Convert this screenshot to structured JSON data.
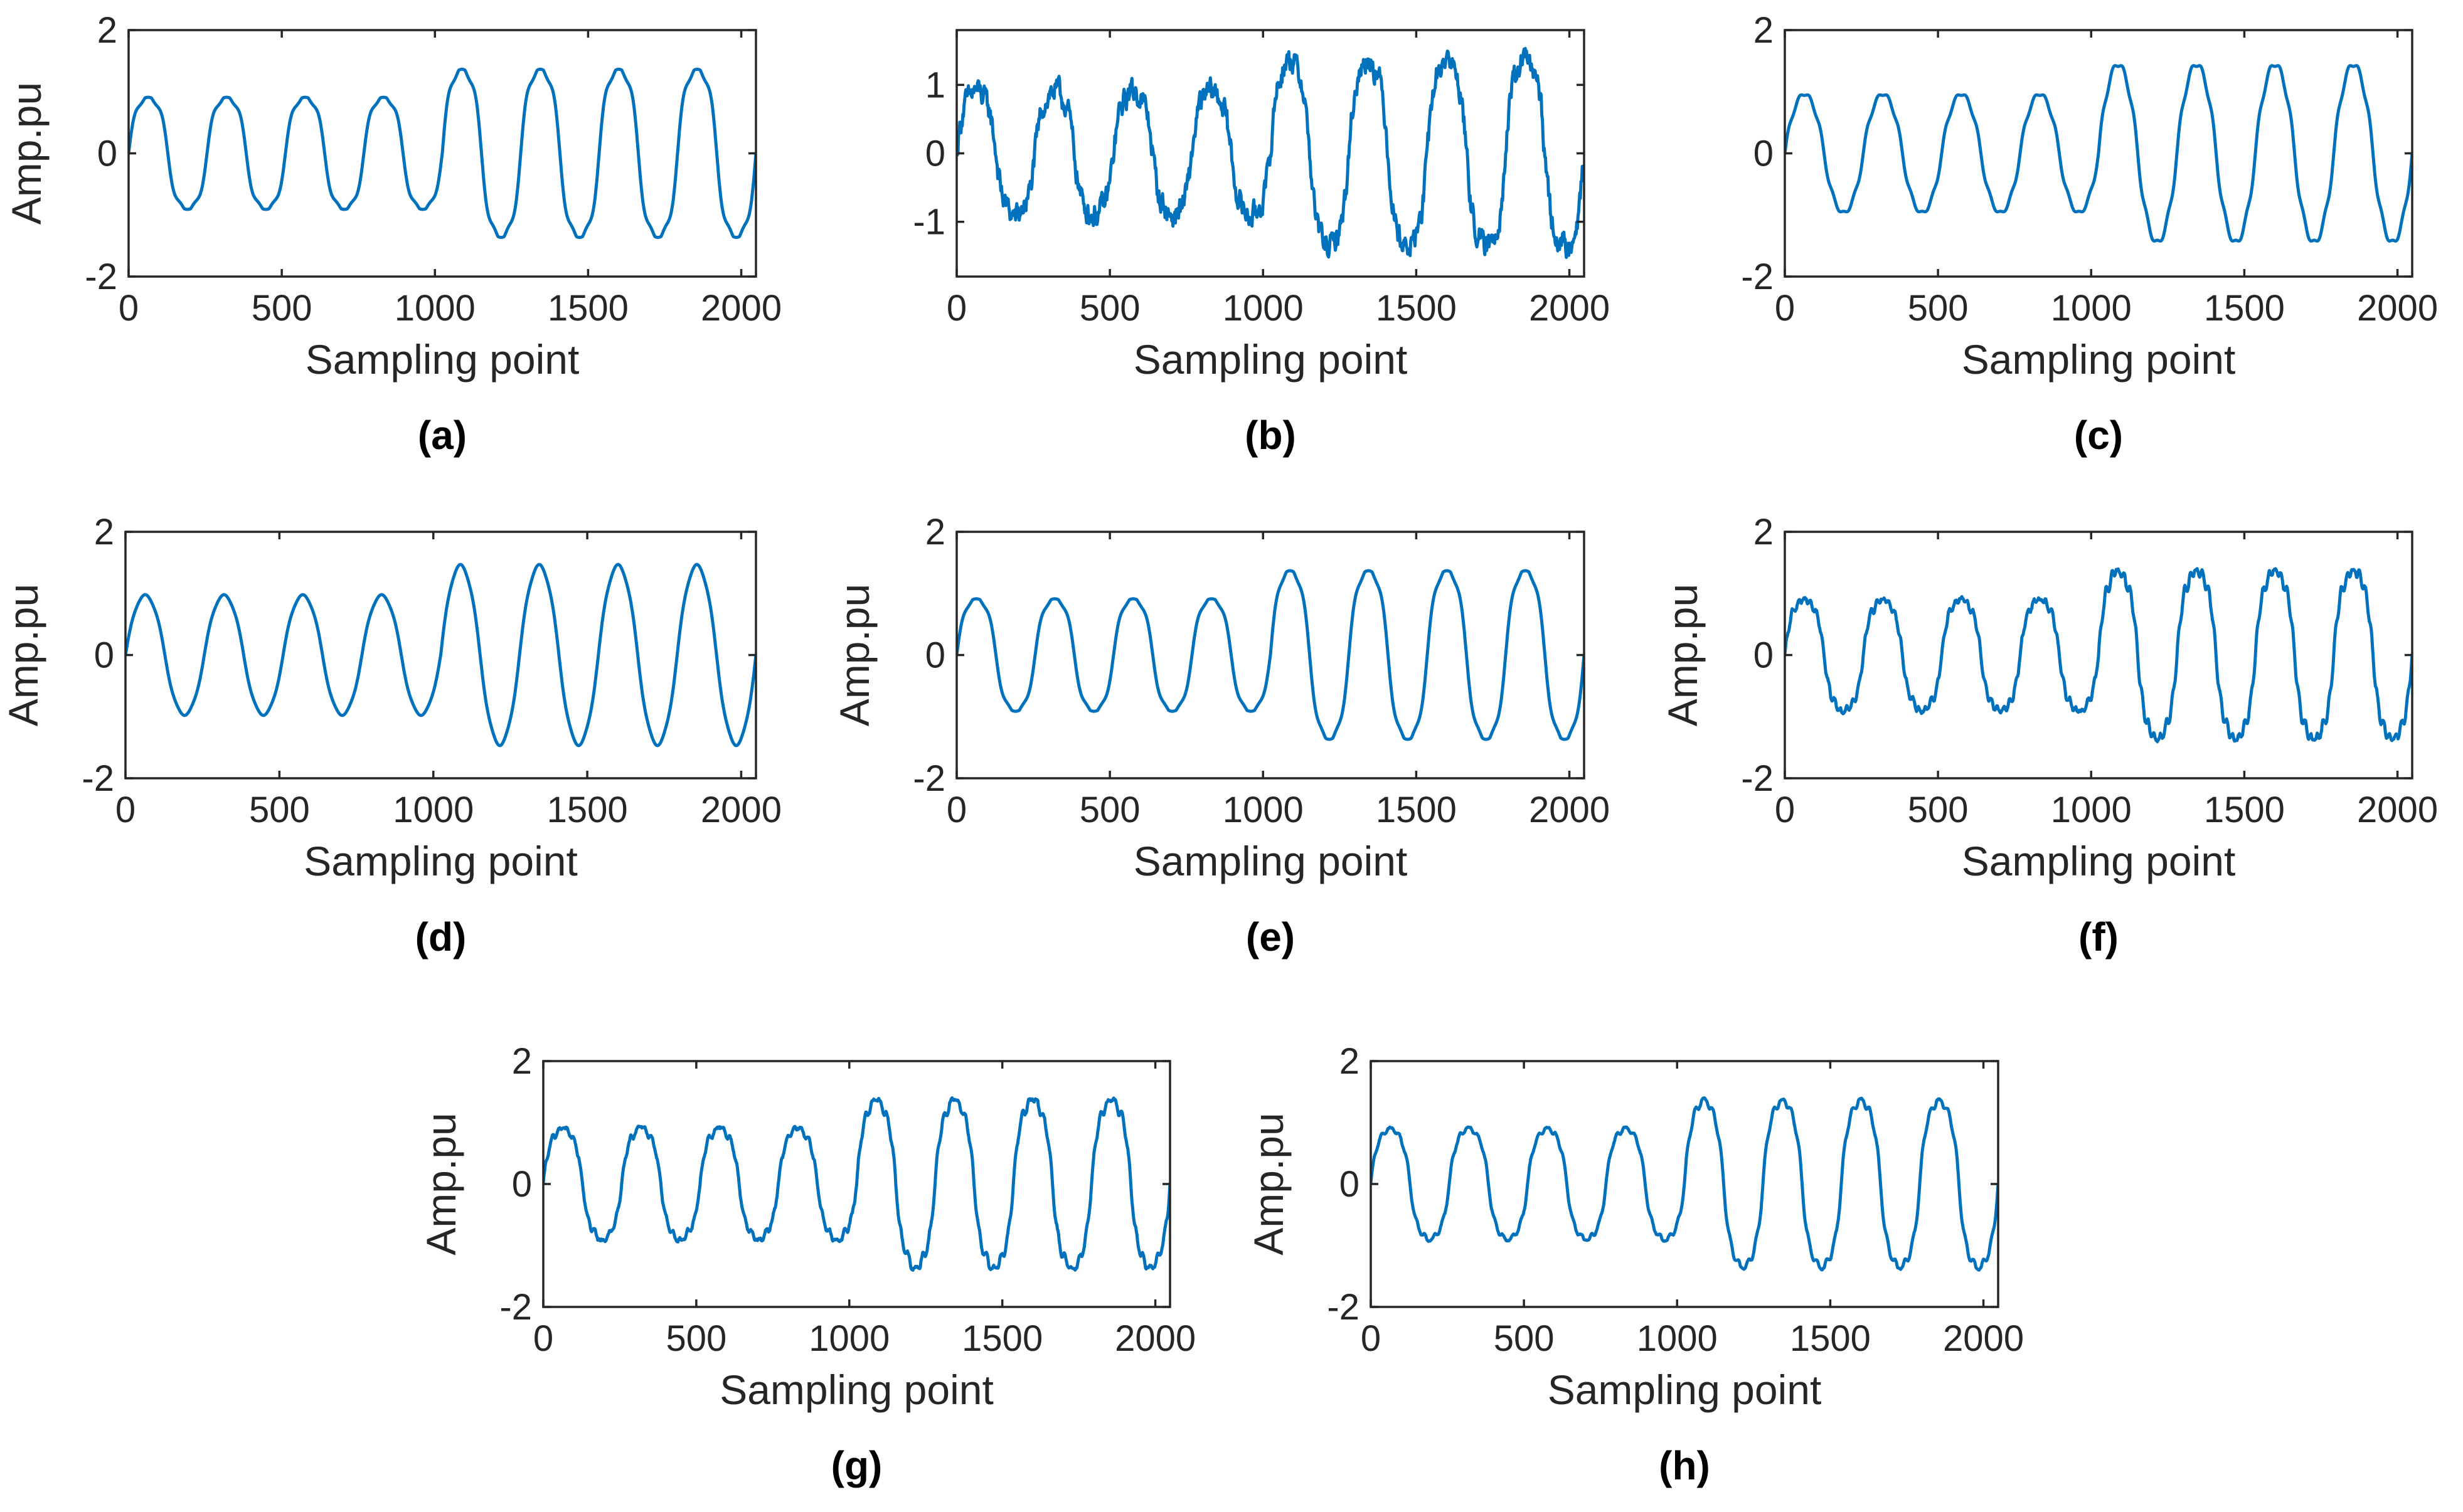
{
  "line_color": "#0072BD",
  "chart_data": [
    {
      "type": "line",
      "panel_label": "(a)",
      "xlabel": "Sampling point",
      "ylabel": "Amp.pu",
      "xlim": [
        0,
        2048
      ],
      "ylim": [
        -2,
        2
      ],
      "xticks": [
        0,
        500,
        1000,
        1500,
        2000
      ],
      "yticks": [
        -2,
        0,
        2
      ],
      "grid": false,
      "series": [
        {
          "signal": {
            "period": 256,
            "amplitudes": [
              1.0,
              1.0,
              1.0,
              1.0,
              1.5,
              1.5,
              1.5,
              1.5
            ],
            "harmonics": [
              [
                3,
                0.12
              ],
              [
                5,
                0.06
              ]
            ],
            "flat_top": 0.9,
            "noise": 0.0
          }
        }
      ]
    },
    {
      "type": "line",
      "panel_label": "(b)",
      "xlabel": "Sampling point",
      "ylabel": "",
      "xlim": [
        0,
        2048
      ],
      "ylim": [
        -1.8,
        1.8
      ],
      "xticks": [
        0,
        500,
        1000,
        1500,
        2000
      ],
      "yticks": [
        -1,
        0,
        1
      ],
      "grid": false,
      "series": [
        {
          "signal": {
            "period": 256,
            "amplitudes": [
              1.0,
              1.0,
              1.0,
              1.0,
              1.5,
              1.5,
              1.5,
              1.5
            ],
            "harmonics": [
              [
                3,
                0.1
              ],
              [
                5,
                0.05
              ]
            ],
            "flat_top": 0.9,
            "noise": 0.13
          }
        }
      ]
    },
    {
      "type": "line",
      "panel_label": "(c)",
      "xlabel": "Sampling point",
      "ylabel": "",
      "xlim": [
        0,
        2048
      ],
      "ylim": [
        -2,
        2
      ],
      "xticks": [
        0,
        500,
        1000,
        1500,
        2000
      ],
      "yticks": [
        -2,
        0,
        2
      ],
      "grid": false,
      "series": [
        {
          "signal": {
            "period": 256,
            "amplitudes": [
              1.0,
              1.0,
              1.0,
              1.0,
              1.5,
              1.5,
              1.5,
              1.5
            ],
            "harmonics": [
              [
                3,
                0.05
              ],
              [
                5,
                0.03
              ],
              [
                7,
                0.04
              ]
            ],
            "flat_top": 0,
            "noise": 0.0
          }
        }
      ]
    },
    {
      "type": "line",
      "panel_label": "(d)",
      "xlabel": "Sampling point",
      "ylabel": "Amp.pu",
      "xlim": [
        0,
        2048
      ],
      "ylim": [
        -2,
        2
      ],
      "xticks": [
        0,
        500,
        1000,
        1500,
        2000
      ],
      "yticks": [
        -2,
        0,
        2
      ],
      "grid": false,
      "series": [
        {
          "signal": {
            "period": 256,
            "amplitudes": [
              1.0,
              1.0,
              1.0,
              1.0,
              1.5,
              1.5,
              1.5,
              1.5
            ],
            "harmonics": [
              [
                3,
                0.04
              ],
              [
                5,
                0.02
              ]
            ],
            "flat_top": 0,
            "noise": 0.0
          }
        }
      ]
    },
    {
      "type": "line",
      "panel_label": "(e)",
      "xlabel": "Sampling point",
      "ylabel": "Amp.pu",
      "xlim": [
        0,
        2048
      ],
      "ylim": [
        -2,
        2
      ],
      "xticks": [
        0,
        500,
        1000,
        1500,
        2000
      ],
      "yticks": [
        -2,
        0,
        2
      ],
      "grid": false,
      "series": [
        {
          "signal": {
            "period": 256,
            "amplitudes": [
              1.0,
              1.0,
              1.0,
              1.0,
              1.5,
              1.5,
              1.5,
              1.5
            ],
            "harmonics": [
              [
                3,
                0.1
              ],
              [
                5,
                0.05
              ]
            ],
            "flat_top": 0.9,
            "noise": 0.0
          }
        }
      ]
    },
    {
      "type": "line",
      "panel_label": "(f)",
      "xlabel": "Sampling point",
      "ylabel": "Amp.pu",
      "xlim": [
        0,
        2048
      ],
      "ylim": [
        -2,
        2
      ],
      "xticks": [
        0,
        500,
        1000,
        1500,
        2000
      ],
      "yticks": [
        -2,
        0,
        2
      ],
      "grid": false,
      "series": [
        {
          "signal": {
            "period": 256,
            "amplitudes": [
              1.0,
              1.0,
              1.0,
              1.0,
              1.5,
              1.5,
              1.5,
              1.5
            ],
            "harmonics": [
              [
                3,
                0.1
              ],
              [
                5,
                0.05
              ],
              [
                13,
                0.06
              ]
            ],
            "flat_top": 0.9,
            "noise": 0.02
          }
        }
      ]
    },
    {
      "type": "line",
      "panel_label": "(g)",
      "xlabel": "Sampling point",
      "ylabel": "Amp.pu",
      "xlim": [
        0,
        2048
      ],
      "ylim": [
        -2,
        2
      ],
      "xticks": [
        0,
        500,
        1000,
        1500,
        2000
      ],
      "yticks": [
        -2,
        0,
        2
      ],
      "grid": false,
      "series": [
        {
          "signal": {
            "period": 256,
            "amplitudes": [
              1.0,
              1.0,
              1.0,
              1.0,
              1.5,
              1.5,
              1.5,
              1.5
            ],
            "harmonics": [
              [
                3,
                0.1
              ],
              [
                5,
                0.05
              ],
              [
                11,
                0.05
              ]
            ],
            "flat_top": 0.9,
            "noise": 0.02
          }
        }
      ]
    },
    {
      "type": "line",
      "panel_label": "(h)",
      "xlabel": "Sampling point",
      "ylabel": "Amp.pu",
      "xlim": [
        0,
        2048
      ],
      "ylim": [
        -2,
        2
      ],
      "xticks": [
        0,
        500,
        1000,
        1500,
        2000
      ],
      "yticks": [
        -2,
        0,
        2
      ],
      "grid": false,
      "series": [
        {
          "signal": {
            "period": 256,
            "amplitudes": [
              1.0,
              1.0,
              1.0,
              1.0,
              1.5,
              1.5,
              1.5,
              1.5
            ],
            "harmonics": [
              [
                3,
                0.1
              ],
              [
                5,
                0.05
              ],
              [
                9,
                0.05
              ]
            ],
            "flat_top": 0.9,
            "noise": 0.01
          }
        }
      ]
    }
  ]
}
